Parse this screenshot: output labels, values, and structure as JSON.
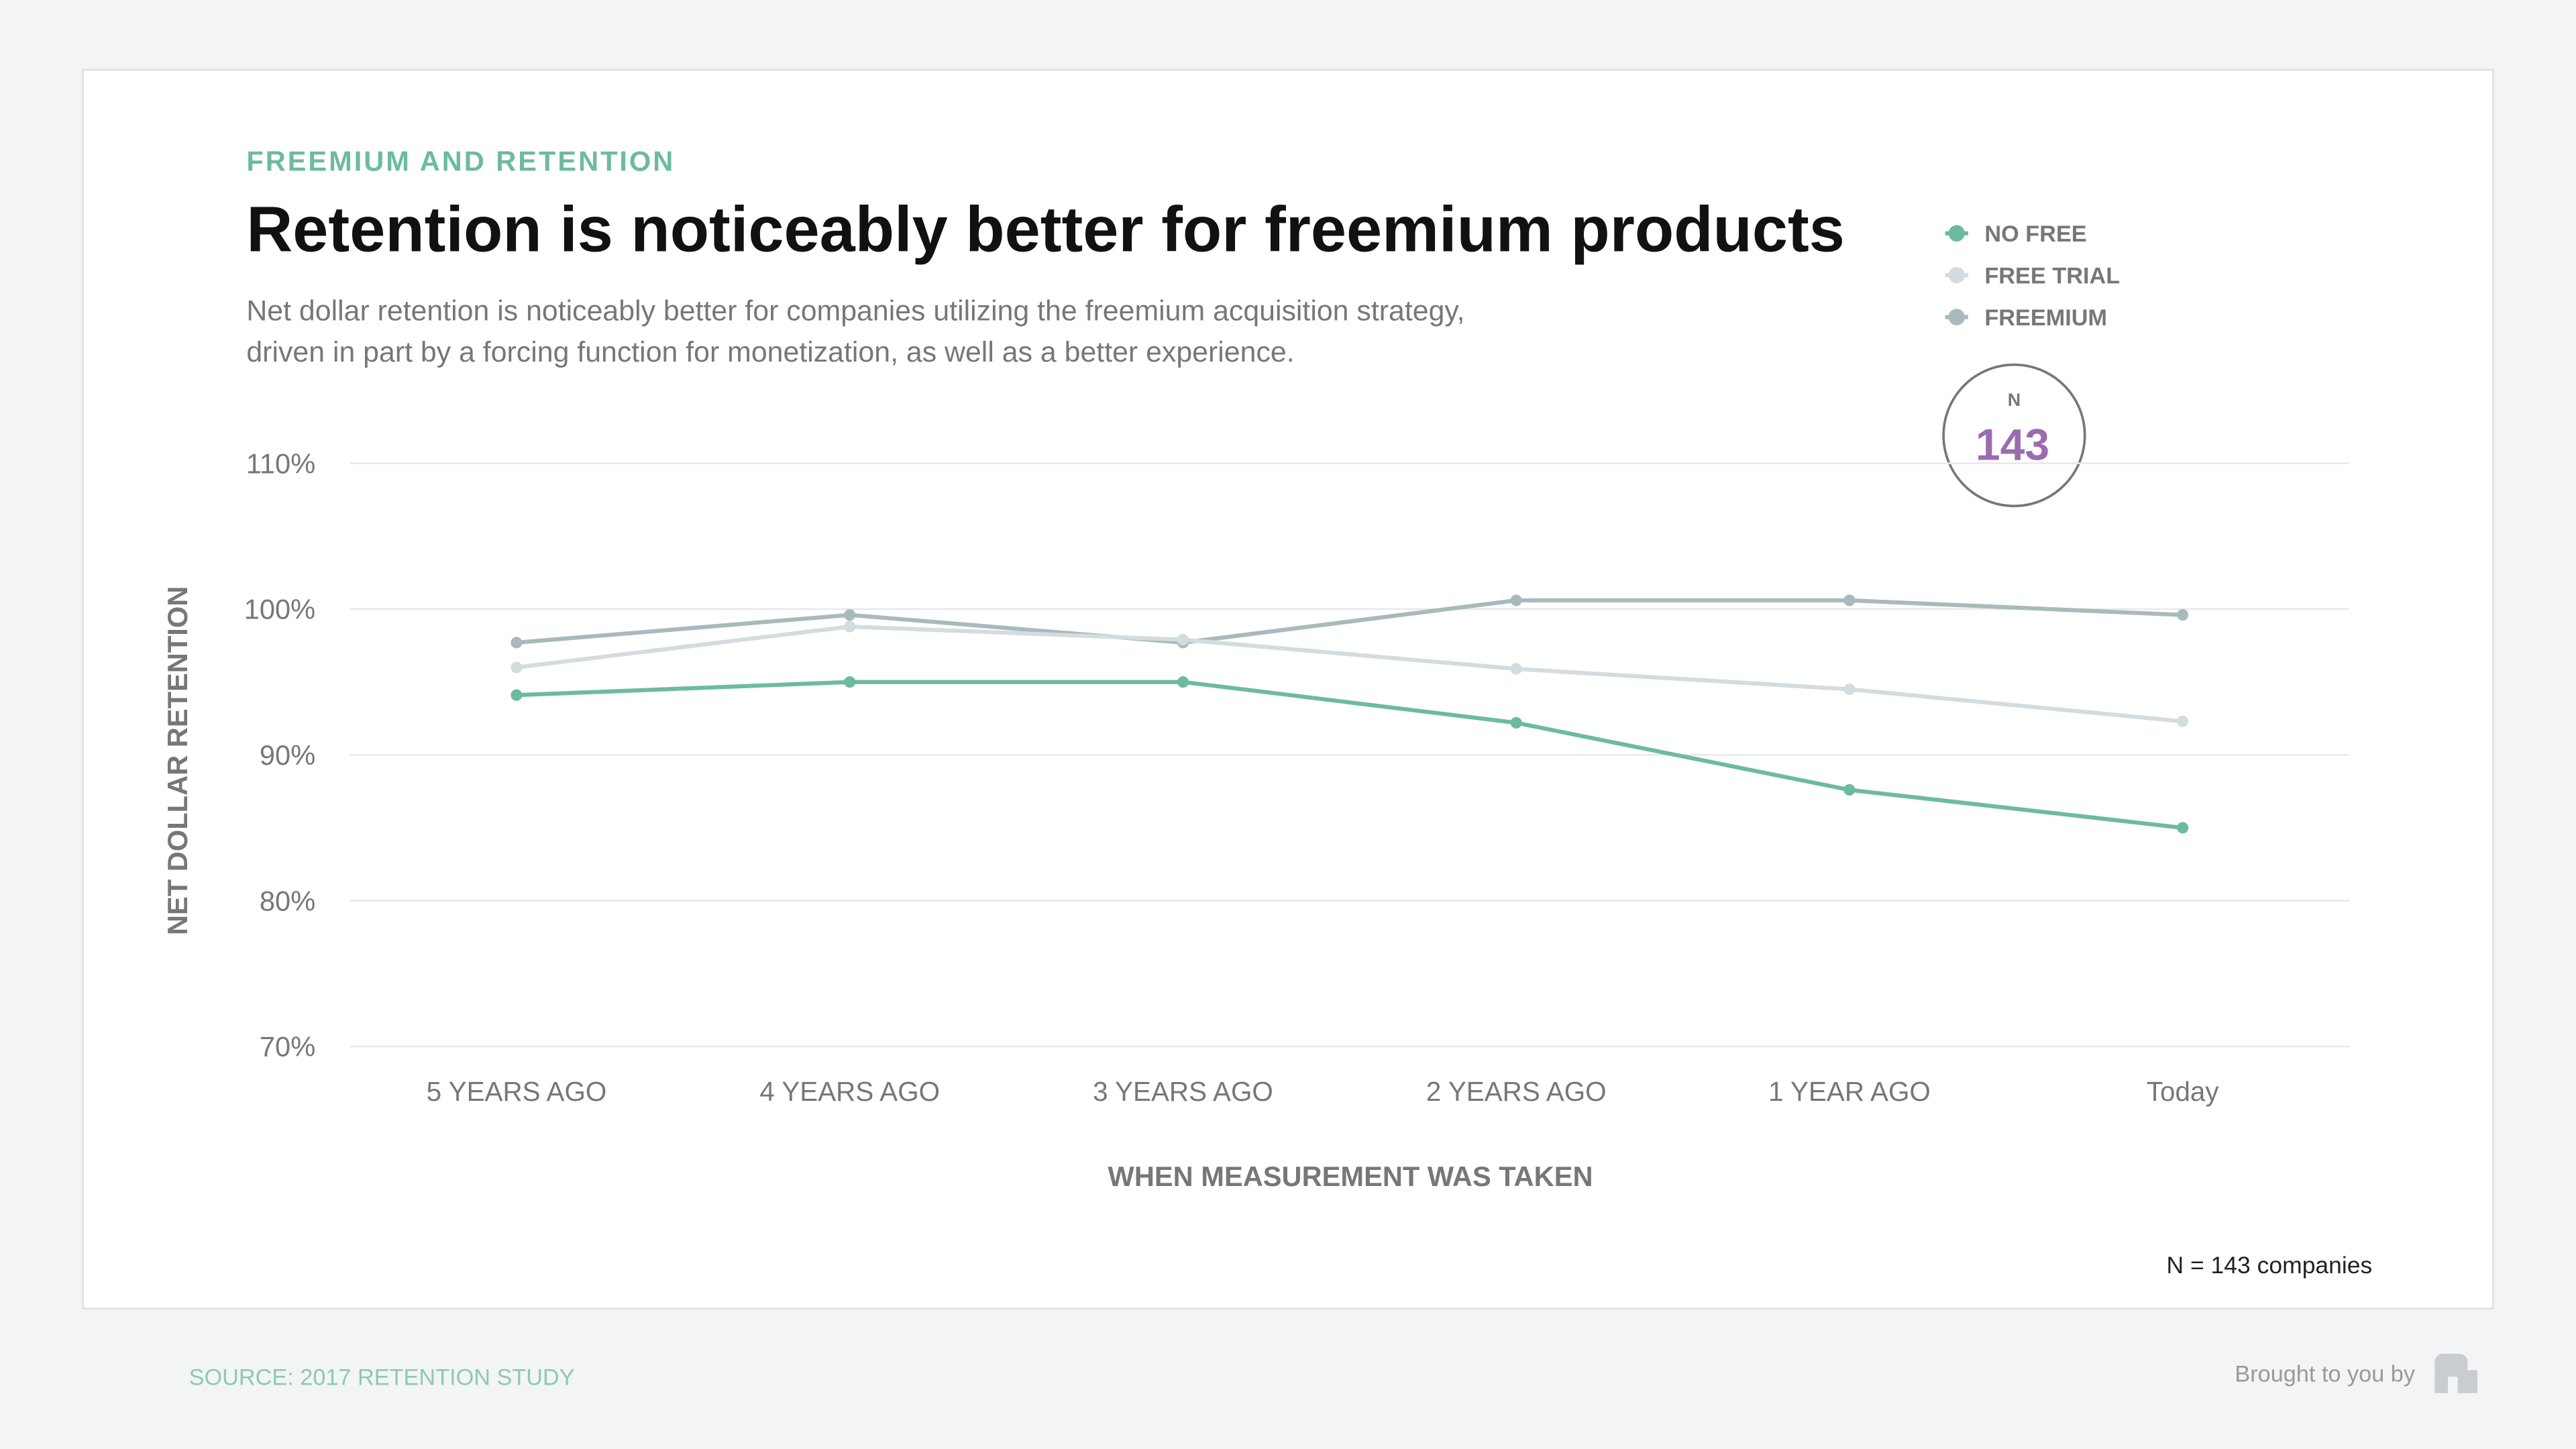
{
  "chart_data": {
    "type": "line",
    "kicker": "FREEMIUM AND RETENTION",
    "title": "Retention is noticeably better for freemium products",
    "subtitle": [
      "Net dollar retention is noticeably better for companies utilizing the freemium acquisition strategy,",
      "driven in part by a forcing function for monetization, as well as a better experience."
    ],
    "y_label": "NET DOLLAR RETENTION",
    "x_label": "WHEN MEASUREMENT WAS TAKEN",
    "categories": [
      "5 YEARS AGO",
      "4 YEARS AGO",
      "3 YEARS AGO",
      "2 YEARS AGO",
      "1 YEAR AGO",
      "Today"
    ],
    "series": [
      {
        "name": "NO FREE",
        "color": "#6dbb9e",
        "values": [
          94.1,
          95.0,
          95.0,
          92.2,
          87.6,
          85.0
        ]
      },
      {
        "name": "FREE TRIAL",
        "color": "#d3dcdf",
        "values": [
          96.0,
          98.8,
          97.9,
          95.9,
          94.5,
          92.3
        ]
      },
      {
        "name": "FREEMIUM",
        "color": "#a9b9bc",
        "values": [
          97.7,
          99.6,
          97.7,
          100.6,
          100.6,
          99.6
        ]
      }
    ],
    "ylim": [
      70,
      110
    ],
    "yticks": [
      {
        "value": 70,
        "label": "70%"
      },
      {
        "value": 80,
        "label": "80%"
      },
      {
        "value": 90,
        "label": "90%"
      },
      {
        "value": 100,
        "label": "100%"
      },
      {
        "value": 110,
        "label": "110%"
      }
    ],
    "grid": true,
    "legend": "top-right",
    "badge": {
      "label": "N",
      "value": 143
    },
    "note": "N = 143 companies",
    "source": "SOURCE: 2017 RETENTION  STUDY",
    "credit": "Brought to you by"
  }
}
